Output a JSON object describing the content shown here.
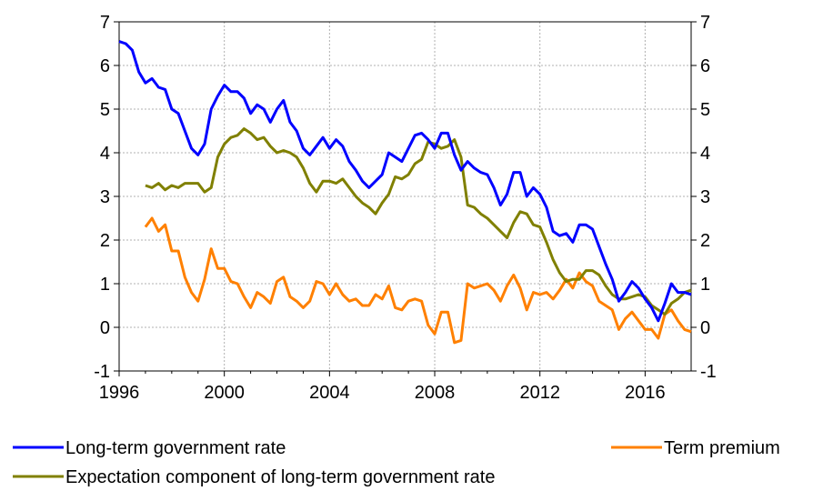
{
  "chart_data": {
    "type": "line",
    "title": "",
    "xlabel": "",
    "ylabel": "",
    "xlim": [
      1996,
      2017.75
    ],
    "ylim": [
      -1,
      7
    ],
    "y_ticks": [
      -1,
      0,
      1,
      2,
      3,
      4,
      5,
      6,
      7
    ],
    "x_ticks": [
      1996,
      2000,
      2004,
      2008,
      2012,
      2016
    ],
    "x_tick_labels": [
      "1996",
      "2000",
      "2004",
      "2008",
      "2012",
      "2016"
    ],
    "y_tick_labels": [
      "-1",
      "0",
      "1",
      "2",
      "3",
      "4",
      "5",
      "6",
      "7"
    ],
    "grid": true,
    "right_axis_mirror": true,
    "legend": "bottom",
    "series": [
      {
        "name": "Long-term government rate",
        "color": "#0000ff",
        "points": [
          [
            1996.0,
            6.55
          ],
          [
            1996.25,
            6.5
          ],
          [
            1996.5,
            6.35
          ],
          [
            1996.75,
            5.85
          ],
          [
            1997.0,
            5.6
          ],
          [
            1997.25,
            5.7
          ],
          [
            1997.5,
            5.5
          ],
          [
            1997.75,
            5.45
          ],
          [
            1998.0,
            5.0
          ],
          [
            1998.25,
            4.9
          ],
          [
            1998.5,
            4.5
          ],
          [
            1998.75,
            4.1
          ],
          [
            1999.0,
            3.95
          ],
          [
            1999.25,
            4.2
          ],
          [
            1999.5,
            5.0
          ],
          [
            1999.75,
            5.3
          ],
          [
            2000.0,
            5.55
          ],
          [
            2000.25,
            5.4
          ],
          [
            2000.5,
            5.4
          ],
          [
            2000.75,
            5.25
          ],
          [
            2001.0,
            4.9
          ],
          [
            2001.25,
            5.1
          ],
          [
            2001.5,
            5.0
          ],
          [
            2001.75,
            4.7
          ],
          [
            2002.0,
            5.0
          ],
          [
            2002.25,
            5.2
          ],
          [
            2002.5,
            4.7
          ],
          [
            2002.75,
            4.5
          ],
          [
            2003.0,
            4.1
          ],
          [
            2003.25,
            3.95
          ],
          [
            2003.5,
            4.15
          ],
          [
            2003.75,
            4.35
          ],
          [
            2004.0,
            4.1
          ],
          [
            2004.25,
            4.3
          ],
          [
            2004.5,
            4.15
          ],
          [
            2004.75,
            3.8
          ],
          [
            2005.0,
            3.6
          ],
          [
            2005.25,
            3.35
          ],
          [
            2005.5,
            3.2
          ],
          [
            2005.75,
            3.35
          ],
          [
            2006.0,
            3.5
          ],
          [
            2006.25,
            4.0
          ],
          [
            2006.5,
            3.9
          ],
          [
            2006.75,
            3.8
          ],
          [
            2007.0,
            4.1
          ],
          [
            2007.25,
            4.4
          ],
          [
            2007.5,
            4.45
          ],
          [
            2007.75,
            4.3
          ],
          [
            2008.0,
            4.1
          ],
          [
            2008.25,
            4.45
          ],
          [
            2008.5,
            4.45
          ],
          [
            2008.75,
            3.95
          ],
          [
            2009.0,
            3.6
          ],
          [
            2009.25,
            3.8
          ],
          [
            2009.5,
            3.65
          ],
          [
            2009.75,
            3.55
          ],
          [
            2010.0,
            3.5
          ],
          [
            2010.25,
            3.2
          ],
          [
            2010.5,
            2.8
          ],
          [
            2010.75,
            3.05
          ],
          [
            2011.0,
            3.55
          ],
          [
            2011.25,
            3.55
          ],
          [
            2011.5,
            3.0
          ],
          [
            2011.75,
            3.2
          ],
          [
            2012.0,
            3.05
          ],
          [
            2012.25,
            2.75
          ],
          [
            2012.5,
            2.2
          ],
          [
            2012.75,
            2.1
          ],
          [
            2013.0,
            2.15
          ],
          [
            2013.25,
            1.95
          ],
          [
            2013.5,
            2.35
          ],
          [
            2013.75,
            2.35
          ],
          [
            2014.0,
            2.25
          ],
          [
            2014.25,
            1.85
          ],
          [
            2014.5,
            1.45
          ],
          [
            2014.75,
            1.1
          ],
          [
            2015.0,
            0.6
          ],
          [
            2015.25,
            0.8
          ],
          [
            2015.5,
            1.05
          ],
          [
            2015.75,
            0.9
          ],
          [
            2016.0,
            0.65
          ],
          [
            2016.25,
            0.45
          ],
          [
            2016.5,
            0.15
          ],
          [
            2016.75,
            0.55
          ],
          [
            2017.0,
            1.0
          ],
          [
            2017.25,
            0.8
          ],
          [
            2017.5,
            0.8
          ],
          [
            2017.75,
            0.75
          ]
        ]
      },
      {
        "name": "Term premium",
        "color": "#ff8000",
        "points": [
          [
            1997.0,
            2.3
          ],
          [
            1997.25,
            2.5
          ],
          [
            1997.5,
            2.2
          ],
          [
            1997.75,
            2.35
          ],
          [
            1998.0,
            1.75
          ],
          [
            1998.25,
            1.75
          ],
          [
            1998.5,
            1.15
          ],
          [
            1998.75,
            0.8
          ],
          [
            1999.0,
            0.6
          ],
          [
            1999.25,
            1.1
          ],
          [
            1999.5,
            1.8
          ],
          [
            1999.75,
            1.35
          ],
          [
            2000.0,
            1.35
          ],
          [
            2000.25,
            1.05
          ],
          [
            2000.5,
            1.0
          ],
          [
            2000.75,
            0.7
          ],
          [
            2001.0,
            0.45
          ],
          [
            2001.25,
            0.8
          ],
          [
            2001.5,
            0.7
          ],
          [
            2001.75,
            0.55
          ],
          [
            2002.0,
            1.05
          ],
          [
            2002.25,
            1.15
          ],
          [
            2002.5,
            0.7
          ],
          [
            2002.75,
            0.6
          ],
          [
            2003.0,
            0.45
          ],
          [
            2003.25,
            0.6
          ],
          [
            2003.5,
            1.05
          ],
          [
            2003.75,
            1.0
          ],
          [
            2004.0,
            0.75
          ],
          [
            2004.25,
            1.0
          ],
          [
            2004.5,
            0.75
          ],
          [
            2004.75,
            0.6
          ],
          [
            2005.0,
            0.65
          ],
          [
            2005.25,
            0.5
          ],
          [
            2005.5,
            0.5
          ],
          [
            2005.75,
            0.75
          ],
          [
            2006.0,
            0.65
          ],
          [
            2006.25,
            0.95
          ],
          [
            2006.5,
            0.45
          ],
          [
            2006.75,
            0.4
          ],
          [
            2007.0,
            0.6
          ],
          [
            2007.25,
            0.65
          ],
          [
            2007.5,
            0.6
          ],
          [
            2007.75,
            0.05
          ],
          [
            2008.0,
            -0.15
          ],
          [
            2008.25,
            0.35
          ],
          [
            2008.5,
            0.35
          ],
          [
            2008.75,
            -0.35
          ],
          [
            2009.0,
            -0.3
          ],
          [
            2009.25,
            1.0
          ],
          [
            2009.5,
            0.9
          ],
          [
            2009.75,
            0.95
          ],
          [
            2010.0,
            1.0
          ],
          [
            2010.25,
            0.85
          ],
          [
            2010.5,
            0.6
          ],
          [
            2010.75,
            0.95
          ],
          [
            2011.0,
            1.2
          ],
          [
            2011.25,
            0.9
          ],
          [
            2011.5,
            0.4
          ],
          [
            2011.75,
            0.8
          ],
          [
            2012.0,
            0.75
          ],
          [
            2012.25,
            0.8
          ],
          [
            2012.5,
            0.65
          ],
          [
            2012.75,
            0.85
          ],
          [
            2013.0,
            1.1
          ],
          [
            2013.25,
            0.9
          ],
          [
            2013.5,
            1.25
          ],
          [
            2013.75,
            1.05
          ],
          [
            2014.0,
            0.95
          ],
          [
            2014.25,
            0.6
          ],
          [
            2014.5,
            0.5
          ],
          [
            2014.75,
            0.4
          ],
          [
            2015.0,
            -0.05
          ],
          [
            2015.25,
            0.2
          ],
          [
            2015.5,
            0.35
          ],
          [
            2015.75,
            0.15
          ],
          [
            2016.0,
            -0.05
          ],
          [
            2016.25,
            -0.05
          ],
          [
            2016.5,
            -0.25
          ],
          [
            2016.75,
            0.3
          ],
          [
            2017.0,
            0.4
          ],
          [
            2017.25,
            0.15
          ],
          [
            2017.5,
            -0.05
          ],
          [
            2017.75,
            -0.1
          ]
        ]
      },
      {
        "name": "Expectation component of long-term government rate",
        "color": "#808000",
        "points": [
          [
            1997.0,
            3.25
          ],
          [
            1997.25,
            3.2
          ],
          [
            1997.5,
            3.3
          ],
          [
            1997.75,
            3.15
          ],
          [
            1998.0,
            3.25
          ],
          [
            1998.25,
            3.2
          ],
          [
            1998.5,
            3.3
          ],
          [
            1998.75,
            3.3
          ],
          [
            1999.0,
            3.3
          ],
          [
            1999.25,
            3.1
          ],
          [
            1999.5,
            3.2
          ],
          [
            1999.75,
            3.9
          ],
          [
            2000.0,
            4.2
          ],
          [
            2000.25,
            4.35
          ],
          [
            2000.5,
            4.4
          ],
          [
            2000.75,
            4.55
          ],
          [
            2001.0,
            4.45
          ],
          [
            2001.25,
            4.3
          ],
          [
            2001.5,
            4.35
          ],
          [
            2001.75,
            4.15
          ],
          [
            2002.0,
            4.0
          ],
          [
            2002.25,
            4.05
          ],
          [
            2002.5,
            4.0
          ],
          [
            2002.75,
            3.9
          ],
          [
            2003.0,
            3.65
          ],
          [
            2003.25,
            3.3
          ],
          [
            2003.5,
            3.1
          ],
          [
            2003.75,
            3.35
          ],
          [
            2004.0,
            3.35
          ],
          [
            2004.25,
            3.3
          ],
          [
            2004.5,
            3.4
          ],
          [
            2004.75,
            3.2
          ],
          [
            2005.0,
            3.0
          ],
          [
            2005.25,
            2.85
          ],
          [
            2005.5,
            2.75
          ],
          [
            2005.75,
            2.6
          ],
          [
            2006.0,
            2.85
          ],
          [
            2006.25,
            3.05
          ],
          [
            2006.5,
            3.45
          ],
          [
            2006.75,
            3.4
          ],
          [
            2007.0,
            3.5
          ],
          [
            2007.25,
            3.75
          ],
          [
            2007.5,
            3.85
          ],
          [
            2007.75,
            4.25
          ],
          [
            2008.0,
            4.2
          ],
          [
            2008.25,
            4.1
          ],
          [
            2008.5,
            4.15
          ],
          [
            2008.75,
            4.3
          ],
          [
            2009.0,
            3.9
          ],
          [
            2009.25,
            2.8
          ],
          [
            2009.5,
            2.75
          ],
          [
            2009.75,
            2.6
          ],
          [
            2010.0,
            2.5
          ],
          [
            2010.25,
            2.35
          ],
          [
            2010.5,
            2.2
          ],
          [
            2010.75,
            2.05
          ],
          [
            2011.0,
            2.4
          ],
          [
            2011.25,
            2.65
          ],
          [
            2011.5,
            2.6
          ],
          [
            2011.75,
            2.35
          ],
          [
            2012.0,
            2.3
          ],
          [
            2012.25,
            1.95
          ],
          [
            2012.5,
            1.55
          ],
          [
            2012.75,
            1.25
          ],
          [
            2013.0,
            1.05
          ],
          [
            2013.25,
            1.1
          ],
          [
            2013.5,
            1.1
          ],
          [
            2013.75,
            1.3
          ],
          [
            2014.0,
            1.3
          ],
          [
            2014.25,
            1.2
          ],
          [
            2014.5,
            0.95
          ],
          [
            2014.75,
            0.75
          ],
          [
            2015.0,
            0.65
          ],
          [
            2015.25,
            0.65
          ],
          [
            2015.5,
            0.7
          ],
          [
            2015.75,
            0.75
          ],
          [
            2016.0,
            0.7
          ],
          [
            2016.25,
            0.5
          ],
          [
            2016.5,
            0.4
          ],
          [
            2016.75,
            0.3
          ],
          [
            2017.0,
            0.55
          ],
          [
            2017.25,
            0.65
          ],
          [
            2017.5,
            0.8
          ],
          [
            2017.75,
            0.85
          ]
        ]
      }
    ]
  }
}
